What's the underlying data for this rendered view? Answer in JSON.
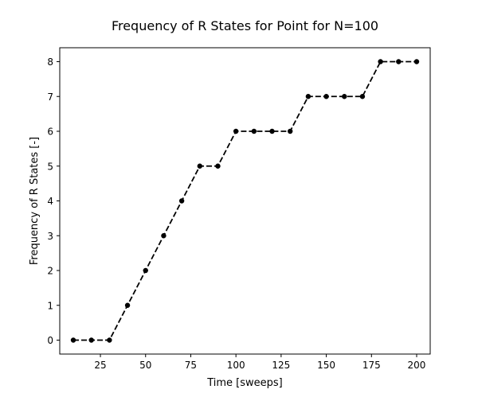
{
  "chart_data": {
    "type": "line",
    "title": "Frequency of R States for Point for N=100",
    "xlabel": "Time [sweeps]",
    "ylabel": "Frequency of R States [-]",
    "xlim": [
      2.5,
      207.5
    ],
    "ylim": [
      -0.4,
      8.4
    ],
    "x_ticks": [
      25,
      50,
      75,
      100,
      125,
      150,
      175,
      200
    ],
    "y_ticks": [
      0,
      1,
      2,
      3,
      4,
      5,
      6,
      7,
      8
    ],
    "grid": false,
    "series": [
      {
        "color": "#000000",
        "line_style": "dashed",
        "marker": "circle",
        "x": [
          10,
          20,
          30,
          40,
          50,
          60,
          70,
          80,
          90,
          100,
          110,
          120,
          130,
          140,
          150,
          160,
          170,
          180,
          190,
          200
        ],
        "y": [
          0,
          0,
          0,
          1,
          2,
          3,
          4,
          5,
          5,
          6,
          6,
          6,
          6,
          7,
          7,
          7,
          7,
          8,
          8,
          8
        ]
      }
    ]
  }
}
